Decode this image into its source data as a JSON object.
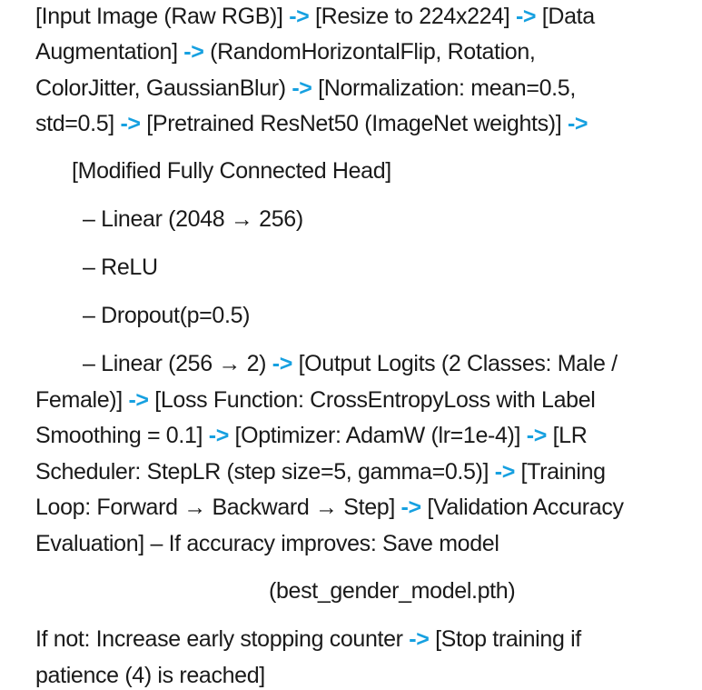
{
  "pipeline": {
    "arrow": "->",
    "p1": {
      "a": "[Input Image (Raw RGB)] ",
      "b": " [Resize to 224x224] ",
      "c": " [Data",
      "d": "Augmentation] ",
      "e": " (RandomHorizontalFlip, Rotation,",
      "f": "ColorJitter, GaussianBlur) ",
      "g": " [Normalization: mean=0.5,",
      "h": "std=0.5] ",
      "i": " [Pretrained ResNet50 (ImageNet weights)] "
    },
    "head": {
      "title": "[Modified Fully Connected Head]",
      "layer1": "– Linear (2048 → 256)",
      "layer2": "– ReLU",
      "layer3": "– Dropout(p=0.5)",
      "layer4": "– Linear (256 → 2) "
    },
    "p2": {
      "a": " [Output Logits (2 Classes: Male /",
      "b": "Female)] ",
      "c": " [Loss Function: CrossEntropyLoss with Label",
      "d": "Smoothing = 0.1] ",
      "e": " [Optimizer: AdamW (lr=1e-4)] ",
      "f": " [LR",
      "g": "Scheduler: StepLR (step size=5, gamma=0.5)] ",
      "h": " [Training",
      "i": "Loop: Forward → Backward → Step] ",
      "j": " [Validation Accuracy",
      "k": "Evaluation] – If accuracy improves: Save model",
      "l": "(best_gender_model.pth)"
    },
    "p3": {
      "a": "If not: Increase early stopping counter ",
      "b": " [Stop training if",
      "c": "patience (4) is reached]"
    }
  }
}
